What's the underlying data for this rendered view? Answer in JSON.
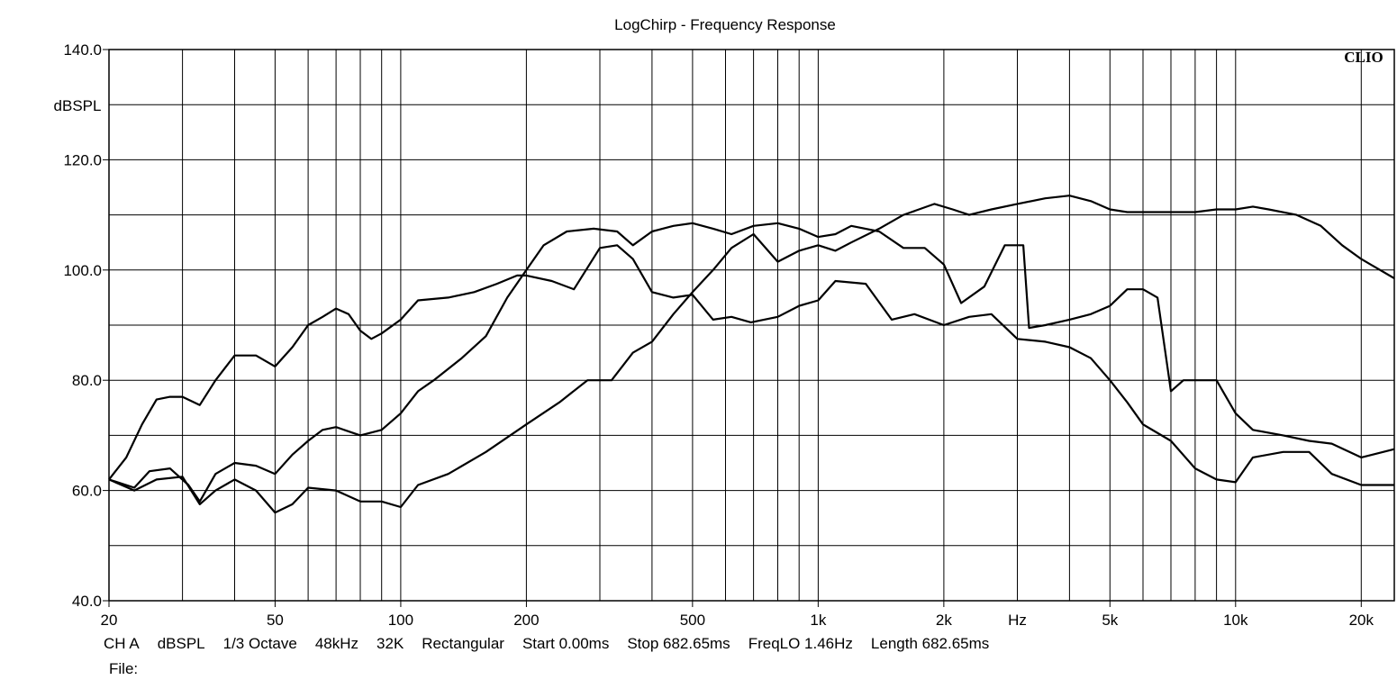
{
  "chart_data": {
    "type": "line",
    "title": "LogChirp - Frequency Response",
    "ylabel": "dBSPL",
    "xlabel": "Hz",
    "brand": "CLIO",
    "x_scale": "log",
    "xlim": [
      20,
      24000
    ],
    "ylim": [
      40,
      140
    ],
    "y_ticks": [
      {
        "value": 140,
        "label": "140.0"
      },
      {
        "value": 120,
        "label": "120.0"
      },
      {
        "value": 100,
        "label": "100.0"
      },
      {
        "value": 80,
        "label": "80.0"
      },
      {
        "value": 60,
        "label": "60.0"
      },
      {
        "value": 40,
        "label": "40.0"
      }
    ],
    "x_ticks": [
      {
        "value": 20,
        "label": "20"
      },
      {
        "value": 50,
        "label": "50"
      },
      {
        "value": 100,
        "label": "100"
      },
      {
        "value": 200,
        "label": "200"
      },
      {
        "value": 500,
        "label": "500"
      },
      {
        "value": 1000,
        "label": "1k"
      },
      {
        "value": 2000,
        "label": "2k"
      },
      {
        "value": 5000,
        "label": "5k"
      },
      {
        "value": 10000,
        "label": "10k"
      },
      {
        "value": 20000,
        "label": "20k"
      }
    ],
    "grid": true,
    "series": [
      {
        "color": "#000000",
        "points": [
          [
            20,
            62
          ],
          [
            22,
            66
          ],
          [
            24,
            72
          ],
          [
            26,
            76.5
          ],
          [
            28,
            77
          ],
          [
            30,
            77
          ],
          [
            33,
            75.5
          ],
          [
            36,
            80
          ],
          [
            40,
            84.5
          ],
          [
            45,
            84.5
          ],
          [
            50,
            82.5
          ],
          [
            55,
            86
          ],
          [
            60,
            90
          ],
          [
            65,
            91.5
          ],
          [
            70,
            93
          ],
          [
            75,
            92
          ],
          [
            80,
            89
          ],
          [
            85,
            87.5
          ],
          [
            90,
            88.5
          ],
          [
            100,
            91
          ],
          [
            110,
            94.5
          ],
          [
            130,
            95
          ],
          [
            150,
            96
          ],
          [
            170,
            97.5
          ],
          [
            190,
            99
          ],
          [
            200,
            99
          ],
          [
            230,
            98
          ],
          [
            260,
            96.5
          ],
          [
            300,
            104
          ],
          [
            330,
            104.5
          ],
          [
            360,
            102
          ],
          [
            400,
            96
          ],
          [
            450,
            95
          ],
          [
            500,
            95.5
          ],
          [
            560,
            91
          ],
          [
            620,
            91.5
          ],
          [
            690,
            90.5
          ],
          [
            800,
            91.5
          ],
          [
            900,
            93.5
          ],
          [
            1000,
            94.5
          ],
          [
            1100,
            98
          ],
          [
            1300,
            97.5
          ],
          [
            1500,
            91
          ],
          [
            1700,
            92
          ],
          [
            2000,
            90
          ],
          [
            2300,
            91.5
          ],
          [
            2600,
            92
          ],
          [
            3000,
            87.5
          ],
          [
            3500,
            87
          ],
          [
            4000,
            86
          ],
          [
            4500,
            84
          ],
          [
            5000,
            80
          ],
          [
            5500,
            76
          ],
          [
            6000,
            72
          ],
          [
            7000,
            69
          ],
          [
            8000,
            64
          ],
          [
            9000,
            62
          ],
          [
            10000,
            61.5
          ],
          [
            11000,
            66
          ],
          [
            13000,
            67
          ],
          [
            15000,
            67
          ],
          [
            17000,
            63
          ],
          [
            20000,
            61
          ],
          [
            24000,
            61
          ]
        ]
      },
      {
        "color": "#000000",
        "points": [
          [
            20,
            62
          ],
          [
            23,
            60.5
          ],
          [
            25,
            63.5
          ],
          [
            28,
            64
          ],
          [
            31,
            61
          ],
          [
            33,
            58
          ],
          [
            36,
            63
          ],
          [
            40,
            65
          ],
          [
            45,
            64.5
          ],
          [
            50,
            63
          ],
          [
            55,
            66.5
          ],
          [
            60,
            69
          ],
          [
            65,
            71
          ],
          [
            70,
            71.5
          ],
          [
            80,
            70
          ],
          [
            90,
            71
          ],
          [
            100,
            74
          ],
          [
            110,
            78
          ],
          [
            120,
            80
          ],
          [
            140,
            84
          ],
          [
            160,
            88
          ],
          [
            180,
            95
          ],
          [
            200,
            100
          ],
          [
            220,
            104.5
          ],
          [
            250,
            107
          ],
          [
            290,
            107.5
          ],
          [
            330,
            107
          ],
          [
            360,
            104.5
          ],
          [
            400,
            107
          ],
          [
            450,
            108
          ],
          [
            500,
            108.5
          ],
          [
            560,
            107.5
          ],
          [
            620,
            106.5
          ],
          [
            700,
            108
          ],
          [
            800,
            108.5
          ],
          [
            900,
            107.5
          ],
          [
            1000,
            106
          ],
          [
            1100,
            106.5
          ],
          [
            1200,
            108
          ],
          [
            1400,
            107
          ],
          [
            1600,
            104
          ],
          [
            1800,
            104
          ],
          [
            2000,
            101
          ],
          [
            2200,
            94
          ],
          [
            2500,
            97
          ],
          [
            2800,
            104.5
          ],
          [
            3100,
            104.5
          ],
          [
            3200,
            89.5
          ],
          [
            3500,
            90
          ],
          [
            4000,
            91
          ],
          [
            4500,
            92
          ],
          [
            5000,
            93.5
          ],
          [
            5500,
            96.5
          ],
          [
            6000,
            96.5
          ],
          [
            6500,
            95
          ],
          [
            7000,
            78
          ],
          [
            7500,
            80
          ],
          [
            8000,
            80
          ],
          [
            9000,
            80
          ],
          [
            10000,
            74
          ],
          [
            11000,
            71
          ],
          [
            13000,
            70
          ],
          [
            15000,
            69
          ],
          [
            17000,
            68.5
          ],
          [
            20000,
            66
          ],
          [
            24000,
            67.5
          ]
        ]
      },
      {
        "color": "#000000",
        "points": [
          [
            20,
            62
          ],
          [
            23,
            60
          ],
          [
            26,
            62
          ],
          [
            30,
            62.5
          ],
          [
            33,
            57.5
          ],
          [
            36,
            60
          ],
          [
            40,
            62
          ],
          [
            45,
            60
          ],
          [
            50,
            56
          ],
          [
            55,
            57.5
          ],
          [
            60,
            60.5
          ],
          [
            70,
            60
          ],
          [
            80,
            58
          ],
          [
            90,
            58
          ],
          [
            100,
            57
          ],
          [
            110,
            61
          ],
          [
            130,
            63
          ],
          [
            160,
            67
          ],
          [
            200,
            72
          ],
          [
            240,
            76
          ],
          [
            280,
            80
          ],
          [
            320,
            80
          ],
          [
            360,
            85
          ],
          [
            400,
            87
          ],
          [
            450,
            92
          ],
          [
            500,
            96
          ],
          [
            560,
            100
          ],
          [
            620,
            104
          ],
          [
            700,
            106.5
          ],
          [
            800,
            101.5
          ],
          [
            900,
            103.5
          ],
          [
            1000,
            104.5
          ],
          [
            1100,
            103.5
          ],
          [
            1200,
            105
          ],
          [
            1400,
            107.5
          ],
          [
            1600,
            110
          ],
          [
            1900,
            112
          ],
          [
            2100,
            111
          ],
          [
            2300,
            110
          ],
          [
            2600,
            111
          ],
          [
            3000,
            112
          ],
          [
            3500,
            113
          ],
          [
            4000,
            113.5
          ],
          [
            4500,
            112.5
          ],
          [
            5000,
            111
          ],
          [
            5500,
            110.5
          ],
          [
            6000,
            110.5
          ],
          [
            7000,
            110.5
          ],
          [
            8000,
            110.5
          ],
          [
            9000,
            111
          ],
          [
            10000,
            111
          ],
          [
            11000,
            111.5
          ],
          [
            12000,
            111
          ],
          [
            14000,
            110
          ],
          [
            16000,
            108
          ],
          [
            18000,
            104.5
          ],
          [
            20000,
            102
          ],
          [
            24000,
            98.5
          ]
        ]
      }
    ],
    "footer": [
      "CH A",
      "dBSPL",
      "1/3 Octave",
      "48kHz",
      "32K",
      "Rectangular",
      "Start 0.00ms",
      "Stop 682.65ms",
      "FreqLO 1.46Hz",
      "Length 682.65ms"
    ],
    "file_label": "File:"
  }
}
